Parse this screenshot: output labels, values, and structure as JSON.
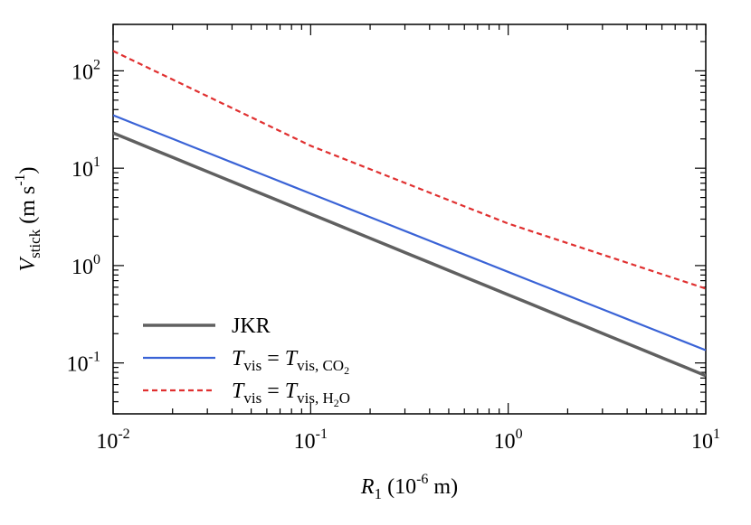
{
  "chart_data": {
    "type": "line",
    "xscale": "log",
    "yscale": "log",
    "xlim": [
      0.01,
      10
    ],
    "ylim": [
      0.03,
      300
    ],
    "grid": false,
    "legend_position": "bottom-left",
    "x_ticks": [
      {
        "value": 0.01,
        "base": "10",
        "exp": "-2"
      },
      {
        "value": 0.1,
        "base": "10",
        "exp": "-1"
      },
      {
        "value": 1,
        "base": "10",
        "exp": "0"
      },
      {
        "value": 10,
        "base": "10",
        "exp": "1"
      }
    ],
    "y_ticks": [
      {
        "value": 0.1,
        "base": "10",
        "exp": "-1"
      },
      {
        "value": 1,
        "base": "10",
        "exp": "0"
      },
      {
        "value": 10,
        "base": "10",
        "exp": "1"
      },
      {
        "value": 100,
        "base": "10",
        "exp": "2"
      }
    ],
    "xlabel": {
      "var": "R",
      "sub": "1",
      "unit_pre": " (10",
      "unit_exp": "-6",
      "unit_post": " m)"
    },
    "ylabel": {
      "var": "V",
      "sub": "stick",
      "unit_pre": " (m s",
      "unit_exp": "-1",
      "unit_post": ")"
    },
    "series": [
      {
        "name": "JKR",
        "color": "#606060",
        "dash": "solid",
        "x": [
          0.01,
          10
        ],
        "y": [
          23,
          0.074
        ]
      },
      {
        "name_parts": {
          "lhs": "T",
          "lhs_sub": "vis",
          "eq": " = ",
          "rhs": "T",
          "rhs_sub": "vis, CO",
          "rhs_sub2": "2"
        },
        "color": "#3a63d6",
        "dash": "solid",
        "x": [
          0.01,
          10
        ],
        "y": [
          35,
          0.135
        ]
      },
      {
        "name_parts": {
          "lhs": "T",
          "lhs_sub": "vis",
          "eq": " = ",
          "rhs": "T",
          "rhs_sub": "vis, H",
          "rhs_sub2": "2",
          "rhs_tail": "O"
        },
        "color": "#e03030",
        "dash": "dashed",
        "x": [
          0.01,
          0.1,
          1,
          10
        ],
        "y": [
          160,
          17,
          2.7,
          0.58
        ]
      }
    ]
  }
}
